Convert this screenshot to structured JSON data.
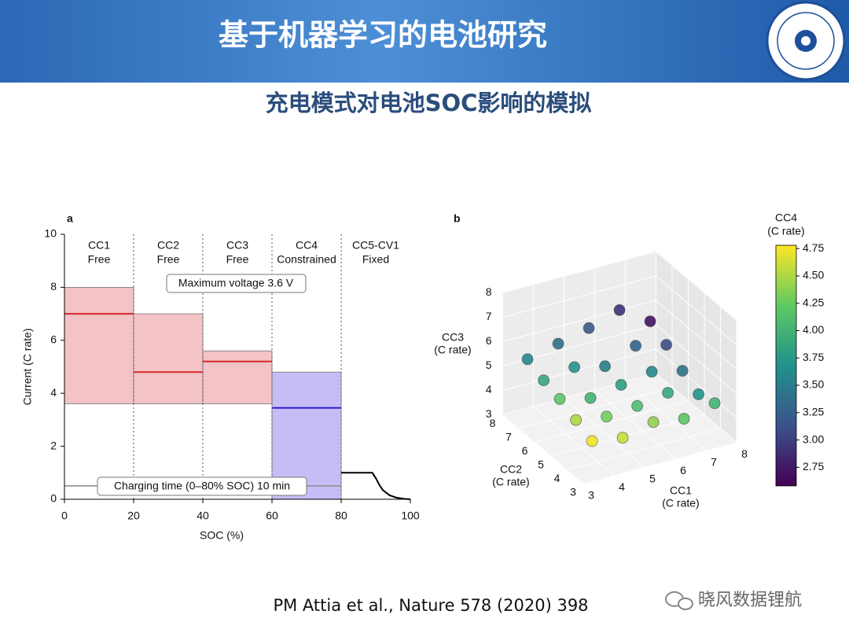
{
  "header": {
    "title": "基于机器学习的电池研究",
    "subtitle": "充电模式对电池SOC影响的模拟"
  },
  "chart_data": [
    {
      "type": "step-range",
      "panel": "a",
      "xlabel": "SOC (%)",
      "ylabel": "Current (C rate)",
      "xlim": [
        0,
        100
      ],
      "xticks": [
        0,
        20,
        40,
        60,
        80,
        100
      ],
      "ylim": [
        0,
        10
      ],
      "yticks": [
        0,
        2,
        4,
        6,
        8,
        10
      ],
      "x_edges": [
        0,
        20,
        40,
        60,
        80,
        100
      ],
      "stages": [
        "CC1",
        "CC2",
        "CC3",
        "CC4",
        "CC5-CV1"
      ],
      "stage_notes": [
        "Free",
        "Free",
        "Free",
        "Constrained",
        "Fixed"
      ],
      "values": [
        7,
        4.8,
        5.2,
        3.45,
        null
      ],
      "range_low": [
        3.6,
        3.6,
        3.6,
        0,
        null
      ],
      "range_high": [
        8,
        7,
        5.6,
        4.8,
        null
      ],
      "range_colors": [
        "#f3c3c6",
        "#f3c3c6",
        "#f3c3c6",
        "#c6bdf6",
        null
      ],
      "line_colors": [
        "#d8262c",
        "#d8262c",
        "#d8262c",
        "#2a1dd0",
        null
      ],
      "tail": {
        "x": [
          80,
          89,
          90,
          91,
          92,
          94,
          96,
          98,
          100
        ],
        "values": [
          1,
          1,
          0.8,
          0.55,
          0.35,
          0.15,
          0.06,
          0.02,
          0
        ],
        "color": "#000000"
      },
      "annotations": [
        "Maximum voltage 3.6 V",
        "Charging time (0–80% SOC) 10 min"
      ]
    },
    {
      "type": "scatter3d",
      "panel": "b",
      "xlabel": [
        "CC1",
        "(C rate)"
      ],
      "ylabel": [
        "CC2",
        "(C rate)"
      ],
      "zlabel": [
        "CC3",
        "(C rate)"
      ],
      "xlim": [
        3,
        8
      ],
      "xticks": [
        3,
        4,
        5,
        6,
        7,
        8
      ],
      "ylim": [
        3,
        8
      ],
      "yticks": [
        3,
        4,
        5,
        6,
        7,
        8
      ],
      "zlim": [
        3,
        8
      ],
      "zticks": [
        3,
        4,
        5,
        6,
        7,
        8
      ],
      "x": [
        3.6,
        4.6,
        5.6,
        6.6,
        7.6,
        3.6,
        4.6,
        5.6,
        6.6,
        7.6,
        3.6,
        4.6,
        5.6,
        6.6,
        7.6,
        3.6,
        4.6,
        5.6,
        6.6,
        7.6,
        3.6,
        4.6,
        5.6,
        6.6,
        7.6
      ],
      "y": [
        3.6,
        3.6,
        3.6,
        3.6,
        3.6,
        4.6,
        4.6,
        4.6,
        4.6,
        4.6,
        5.6,
        5.6,
        5.6,
        5.6,
        5.6,
        6.6,
        6.6,
        6.6,
        6.6,
        6.6,
        7.6,
        7.6,
        7.6,
        7.6,
        7.6
      ],
      "z": [
        4.2,
        4.0,
        4.3,
        4.1,
        4.4,
        4.5,
        4.3,
        4.4,
        4.6,
        4.2,
        4.8,
        4.5,
        4.7,
        4.9,
        4.6,
        5.0,
        5.2,
        4.9,
        5.4,
        5.1,
        5.3,
        5.6,
        5.9,
        6.3,
        5.5
      ],
      "color_values": [
        4.75,
        4.6,
        4.4,
        4.2,
        4.0,
        4.5,
        4.3,
        4.1,
        3.9,
        3.7,
        4.2,
        4.0,
        3.8,
        3.6,
        3.4,
        3.9,
        3.7,
        3.5,
        3.3,
        3.1,
        3.6,
        3.4,
        3.2,
        2.9,
        2.7
      ],
      "colormap": "viridis",
      "colorbar": {
        "title": [
          "CC4",
          "(C rate)"
        ],
        "lim": [
          2.58,
          4.78
        ],
        "ticks": [
          2.75,
          {
            "value": 3,
            "label": "3.00"
          },
          3.25,
          {
            "value": 3.5,
            "label": "3.50"
          },
          3.75,
          {
            "value": 4,
            "label": "4.00"
          },
          4.25,
          {
            "value": 4.5,
            "label": "4.50"
          },
          4.75
        ]
      }
    }
  ],
  "footer": {
    "citation": "PM Attia et al., Nature 578 (2020) 398",
    "watermark": "晓风数据锂航"
  }
}
